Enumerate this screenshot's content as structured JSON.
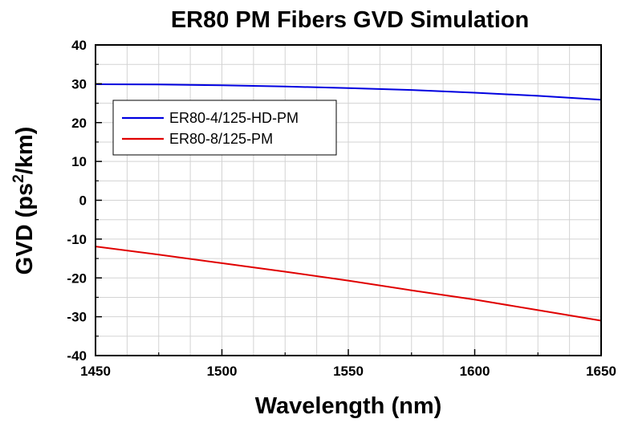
{
  "chart_data": {
    "type": "line",
    "title": "ER80 PM Fibers GVD Simulation",
    "xlabel": "Wavelength (nm)",
    "ylabel_main": "GVD (ps",
    "ylabel_sup": "2",
    "ylabel_tail": "/km)",
    "xlim": [
      1450,
      1650
    ],
    "ylim": [
      -40,
      40
    ],
    "xticks": [
      1450,
      1500,
      1550,
      1600,
      1650
    ],
    "xtick_labels": [
      "1450",
      "1500",
      "1550",
      "1600",
      "1650"
    ],
    "yticks": [
      40,
      30,
      20,
      10,
      0,
      -10,
      -20,
      -30,
      -40
    ],
    "ytick_labels": [
      "40",
      "30",
      "20",
      "10",
      "0",
      "-10",
      "-20",
      "-30",
      "-40"
    ],
    "grid": true,
    "legend_position": "upper-left",
    "series": [
      {
        "name": "ER80-4/125-HD-PM",
        "color": "#0000e0",
        "x": [
          1450,
          1475,
          1500,
          1525,
          1550,
          1575,
          1600,
          1625,
          1650
        ],
        "y": [
          29.9,
          29.8,
          29.6,
          29.3,
          28.9,
          28.4,
          27.7,
          26.9,
          25.9
        ]
      },
      {
        "name": "ER80-8/125-PM",
        "color": "#e00000",
        "x": [
          1450,
          1475,
          1500,
          1525,
          1550,
          1575,
          1600,
          1625,
          1650
        ],
        "y": [
          -11.9,
          -14.0,
          -16.2,
          -18.4,
          -20.7,
          -23.2,
          -25.6,
          -28.3,
          -31.0
        ]
      }
    ]
  }
}
